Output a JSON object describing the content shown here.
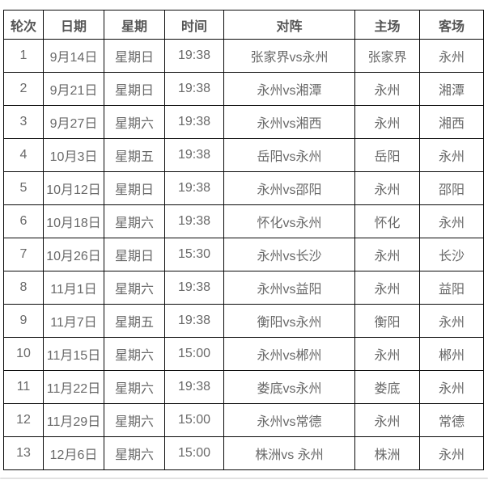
{
  "colors": {
    "background": "#ffffff",
    "table_border": "#0a0a0a",
    "header_text": "#565656",
    "body_text": "#696969",
    "bottom_divider": "#e2e2e2"
  },
  "table": {
    "headers": [
      "轮次",
      "日期",
      "星期",
      "时间",
      "对阵",
      "主场",
      "客场"
    ],
    "rows": [
      [
        "1",
        "9月14日",
        "星期日",
        "19:38",
        "张家界vs永州",
        "张家界",
        "永州"
      ],
      [
        "2",
        "9月21日",
        "星期日",
        "19:38",
        "永州vs湘潭",
        "永州",
        "湘潭"
      ],
      [
        "3",
        "9月27日",
        "星期六",
        "19:38",
        "永州vs湘西",
        "永州",
        "湘西"
      ],
      [
        "4",
        "10月3日",
        "星期五",
        "19:38",
        "岳阳vs永州",
        "岳阳",
        "永州"
      ],
      [
        "5",
        "10月12日",
        "星期日",
        "19:38",
        "永州vs邵阳",
        "永州",
        "邵阳"
      ],
      [
        "6",
        "10月18日",
        "星期六",
        "19:38",
        "怀化vs永州",
        "怀化",
        "永州"
      ],
      [
        "7",
        "10月26日",
        "星期日",
        "15:30",
        "永州vs长沙",
        "永州",
        "长沙"
      ],
      [
        "8",
        "11月1日",
        "星期六",
        "19:38",
        "永州vs益阳",
        "永州",
        "益阳"
      ],
      [
        "9",
        "11月7日",
        "星期五",
        "19:38",
        "衡阳vs永州",
        "衡阳",
        "永州"
      ],
      [
        "10",
        "11月15日",
        "星期六",
        "15:00",
        "永州vs郴州",
        "永州",
        "郴州"
      ],
      [
        "11",
        "11月22日",
        "星期六",
        "19:38",
        "娄底vs永州",
        "娄底",
        "永州"
      ],
      [
        "12",
        "11月29日",
        "星期六",
        "15:00",
        "永州vs常德",
        "永州",
        "常德"
      ],
      [
        "13",
        "12月6日",
        "星期六",
        "15:00",
        "株洲vs 永州",
        "株洲",
        "永州"
      ]
    ]
  }
}
